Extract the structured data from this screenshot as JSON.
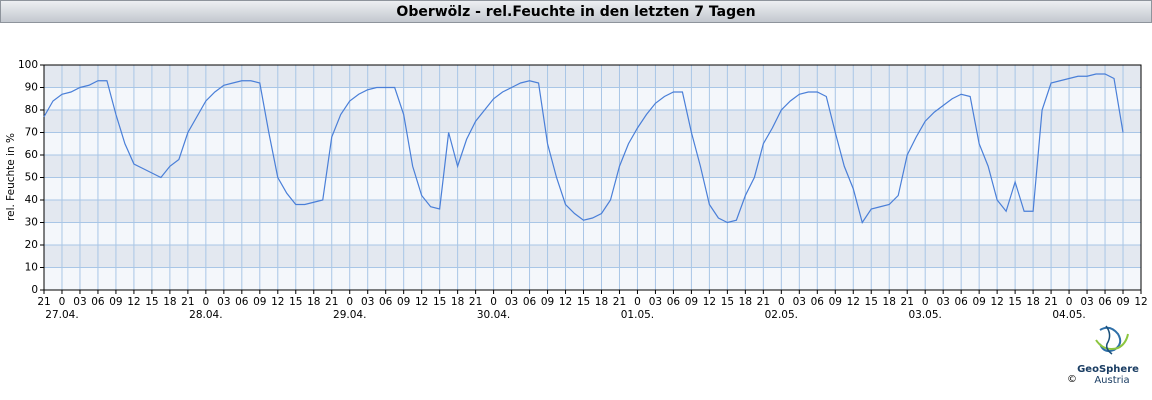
{
  "chart_data": {
    "type": "line",
    "title": "Oberwölz - rel.Feuchte in den letzten 7 Tagen",
    "y_label": "rel. Feuchte in %",
    "color": "#4a7fd8",
    "grid": true,
    "ylim": [
      0,
      100
    ],
    "yticks": [
      0,
      10,
      20,
      30,
      40,
      50,
      60,
      70,
      80,
      90,
      100
    ],
    "xlim": [
      0,
      183
    ],
    "xticks": [
      {
        "value": 0,
        "label": "21"
      },
      {
        "value": 3,
        "label": "0"
      },
      {
        "value": 6,
        "label": "03"
      },
      {
        "value": 9,
        "label": "06"
      },
      {
        "value": 12,
        "label": "09"
      },
      {
        "value": 15,
        "label": "12"
      },
      {
        "value": 18,
        "label": "15"
      },
      {
        "value": 21,
        "label": "18"
      },
      {
        "value": 24,
        "label": "21"
      },
      {
        "value": 27,
        "label": "0"
      },
      {
        "value": 30,
        "label": "03"
      },
      {
        "value": 33,
        "label": "06"
      },
      {
        "value": 36,
        "label": "09"
      },
      {
        "value": 39,
        "label": "12"
      },
      {
        "value": 42,
        "label": "15"
      },
      {
        "value": 45,
        "label": "18"
      },
      {
        "value": 48,
        "label": "21"
      },
      {
        "value": 51,
        "label": "0"
      },
      {
        "value": 54,
        "label": "03"
      },
      {
        "value": 57,
        "label": "06"
      },
      {
        "value": 60,
        "label": "09"
      },
      {
        "value": 63,
        "label": "12"
      },
      {
        "value": 66,
        "label": "15"
      },
      {
        "value": 69,
        "label": "18"
      },
      {
        "value": 72,
        "label": "21"
      },
      {
        "value": 75,
        "label": "0"
      },
      {
        "value": 78,
        "label": "03"
      },
      {
        "value": 81,
        "label": "06"
      },
      {
        "value": 84,
        "label": "09"
      },
      {
        "value": 87,
        "label": "12"
      },
      {
        "value": 90,
        "label": "15"
      },
      {
        "value": 93,
        "label": "18"
      },
      {
        "value": 96,
        "label": "21"
      },
      {
        "value": 99,
        "label": "0"
      },
      {
        "value": 102,
        "label": "03"
      },
      {
        "value": 105,
        "label": "06"
      },
      {
        "value": 108,
        "label": "09"
      },
      {
        "value": 111,
        "label": "12"
      },
      {
        "value": 114,
        "label": "15"
      },
      {
        "value": 117,
        "label": "18"
      },
      {
        "value": 120,
        "label": "21"
      },
      {
        "value": 123,
        "label": "0"
      },
      {
        "value": 126,
        "label": "03"
      },
      {
        "value": 129,
        "label": "06"
      },
      {
        "value": 132,
        "label": "09"
      },
      {
        "value": 135,
        "label": "12"
      },
      {
        "value": 138,
        "label": "15"
      },
      {
        "value": 141,
        "label": "18"
      },
      {
        "value": 144,
        "label": "21"
      },
      {
        "value": 147,
        "label": "0"
      },
      {
        "value": 150,
        "label": "03"
      },
      {
        "value": 153,
        "label": "06"
      },
      {
        "value": 156,
        "label": "09"
      },
      {
        "value": 159,
        "label": "12"
      },
      {
        "value": 162,
        "label": "15"
      },
      {
        "value": 165,
        "label": "18"
      },
      {
        "value": 168,
        "label": "21"
      },
      {
        "value": 171,
        "label": "0"
      },
      {
        "value": 174,
        "label": "03"
      },
      {
        "value": 177,
        "label": "06"
      },
      {
        "value": 180,
        "label": "09"
      },
      {
        "value": 183,
        "label": "12"
      }
    ],
    "date_labels": [
      {
        "value": 3,
        "label": "27.04."
      },
      {
        "value": 27,
        "label": "28.04."
      },
      {
        "value": 51,
        "label": "29.04."
      },
      {
        "value": 75,
        "label": "30.04."
      },
      {
        "value": 99,
        "label": "01.05."
      },
      {
        "value": 123,
        "label": "02.05."
      },
      {
        "value": 147,
        "label": "03.05."
      },
      {
        "value": 171,
        "label": "04.05."
      }
    ],
    "x": [
      0,
      1.5,
      3,
      4.5,
      6,
      7.5,
      9,
      10.5,
      12,
      13.5,
      15,
      16.5,
      18,
      19.5,
      21,
      22.5,
      24,
      25.5,
      27,
      28.5,
      30,
      31.5,
      33,
      34.5,
      36,
      37.5,
      39,
      40.5,
      42,
      43.5,
      45,
      46.5,
      48,
      49.5,
      51,
      52.5,
      54,
      55.5,
      57,
      58.5,
      60,
      61.5,
      63,
      64.5,
      66,
      67.5,
      69,
      70.5,
      72,
      73.5,
      75,
      76.5,
      78,
      79.5,
      81,
      82.5,
      84,
      85.5,
      87,
      88.5,
      90,
      91.5,
      93,
      94.5,
      96,
      97.5,
      99,
      100.5,
      102,
      103.5,
      105,
      106.5,
      108,
      109.5,
      111,
      112.5,
      114,
      115.5,
      117,
      118.5,
      120,
      121.5,
      123,
      124.5,
      126,
      127.5,
      129,
      130.5,
      132,
      133.5,
      135,
      136.5,
      138,
      139.5,
      141,
      142.5,
      144,
      145.5,
      147,
      148.5,
      150,
      151.5,
      153,
      154.5,
      156,
      157.5,
      159,
      160.5,
      162,
      163.5,
      165,
      166.5,
      168,
      169.5,
      171,
      172.5,
      174,
      175.5,
      177,
      178.5,
      180
    ],
    "values": [
      77,
      84,
      87,
      88,
      90,
      91,
      93,
      93,
      78,
      65,
      56,
      54,
      52,
      50,
      55,
      58,
      70,
      77,
      84,
      88,
      91,
      92,
      93,
      93,
      92,
      70,
      50,
      43,
      38,
      38,
      39,
      40,
      68,
      78,
      84,
      87,
      89,
      90,
      90,
      90,
      78,
      55,
      42,
      37,
      36,
      70,
      55,
      67,
      75,
      80,
      85,
      88,
      90,
      92,
      93,
      92,
      65,
      50,
      38,
      34,
      31,
      32,
      34,
      40,
      55,
      65,
      72,
      78,
      83,
      86,
      88,
      88,
      70,
      55,
      38,
      32,
      30,
      31,
      42,
      50,
      65,
      72,
      80,
      84,
      87,
      88,
      88,
      86,
      70,
      55,
      45,
      30,
      36,
      37,
      38,
      42,
      60,
      68,
      75,
      79,
      82,
      85,
      87,
      86,
      65,
      55,
      40,
      35,
      48,
      35,
      35,
      80,
      92,
      93,
      94,
      95,
      95,
      96,
      96,
      94,
      70
    ]
  },
  "logo": {
    "name_1": "GeoSphere",
    "name_2": "Austria",
    "copyright": "©"
  }
}
